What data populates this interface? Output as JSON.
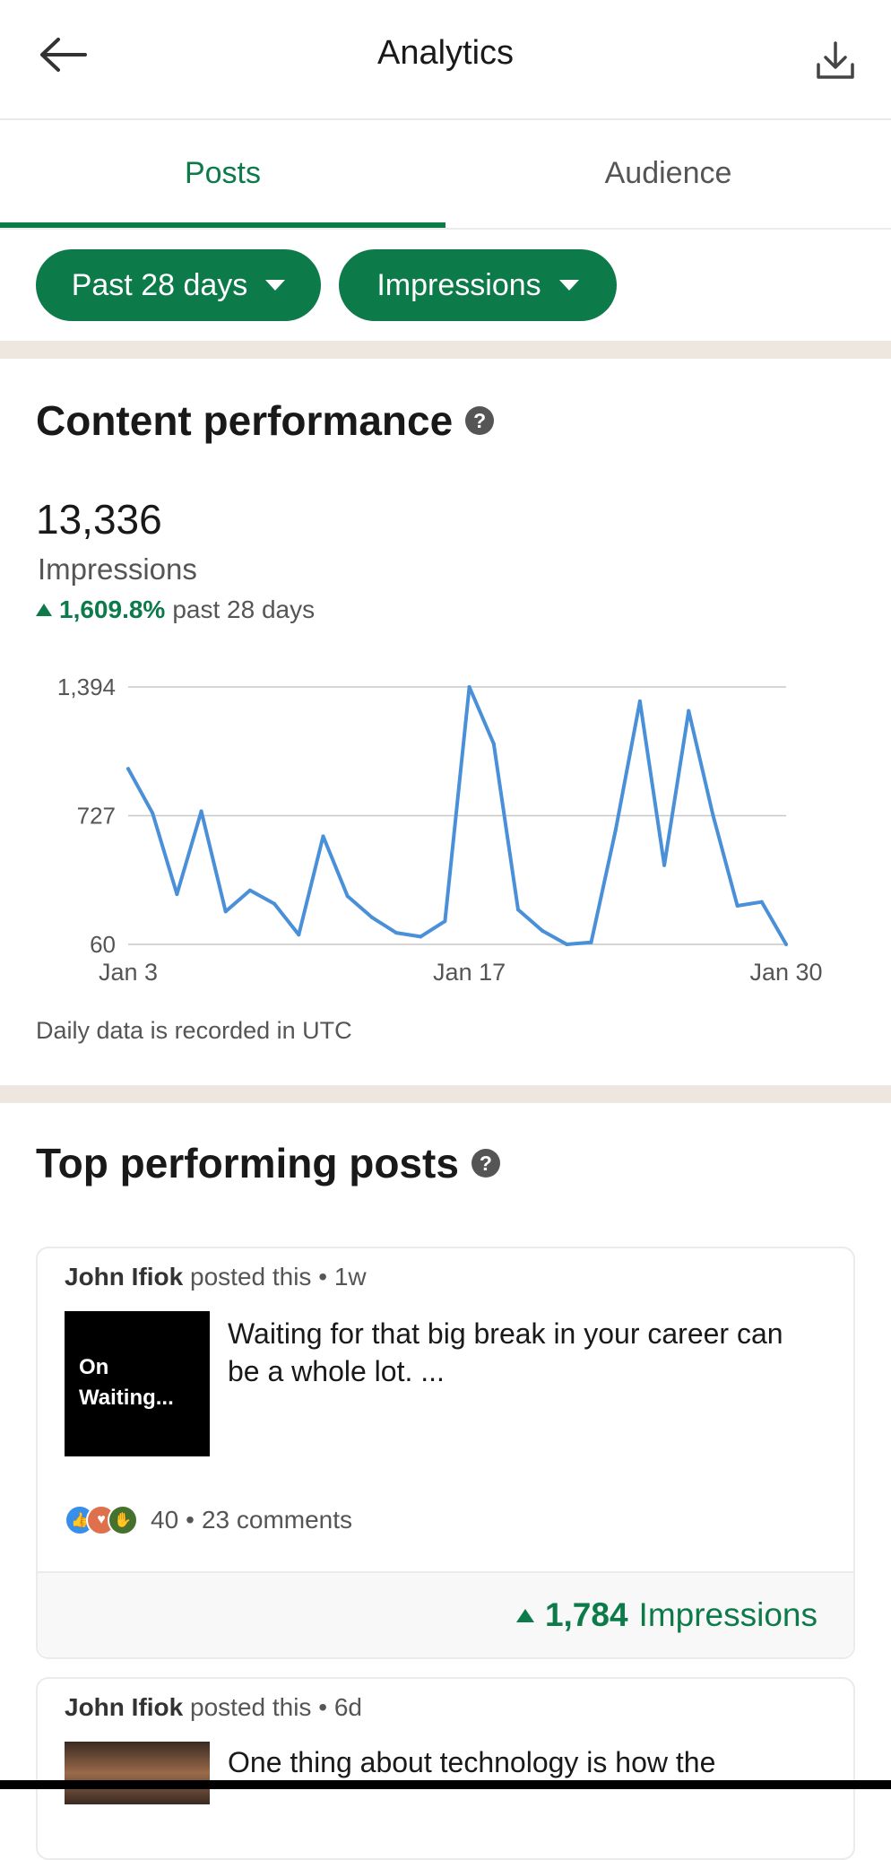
{
  "header": {
    "title": "Analytics",
    "back_icon": "back-arrow-icon",
    "download_icon": "download-icon"
  },
  "tabs": [
    {
      "label": "Posts",
      "active": true
    },
    {
      "label": "Audience",
      "active": false
    }
  ],
  "filters": {
    "range": "Past 28 days",
    "metric": "Impressions"
  },
  "content_performance": {
    "heading": "Content performance",
    "total": "13,336",
    "metric": "Impressions",
    "delta_pct": "1,609.8%",
    "delta_period": "past 28 days",
    "note": "Daily data is recorded in UTC"
  },
  "chart_data": {
    "type": "line",
    "title": "",
    "xlabel": "",
    "ylabel": "",
    "ylim": [
      60,
      1394
    ],
    "y_ticks": [
      "1,394",
      "727",
      "60"
    ],
    "x_tick_labels": [
      "Jan 3",
      "Jan 17",
      "Jan 30"
    ],
    "grid": true,
    "color": "#4a90d9",
    "x": [
      "Jan 3",
      "Jan 4",
      "Jan 5",
      "Jan 6",
      "Jan 7",
      "Jan 8",
      "Jan 9",
      "Jan 10",
      "Jan 11",
      "Jan 12",
      "Jan 13",
      "Jan 14",
      "Jan 15",
      "Jan 16",
      "Jan 17",
      "Jan 18",
      "Jan 19",
      "Jan 20",
      "Jan 21",
      "Jan 22",
      "Jan 23",
      "Jan 24",
      "Jan 25",
      "Jan 26",
      "Jan 27",
      "Jan 28",
      "Jan 29",
      "Jan 30"
    ],
    "values": [
      970,
      740,
      320,
      750,
      230,
      340,
      270,
      110,
      620,
      310,
      200,
      120,
      100,
      180,
      1394,
      1100,
      240,
      130,
      60,
      70,
      650,
      1320,
      470,
      1270,
      730,
      260,
      280,
      60
    ]
  },
  "top_posts": {
    "heading": "Top performing posts",
    "posts": [
      {
        "author": "John Ifiok",
        "action": "posted this",
        "age": "1w",
        "thumb_text": "On Waiting...",
        "text": "Waiting for that big break in your career can be a whole lot. ...",
        "reactions": "40",
        "comments": "23 comments",
        "impressions": "1,784",
        "impressions_label": "Impressions"
      },
      {
        "author": "John Ifiok",
        "action": "posted this",
        "age": "6d",
        "text": "One thing about technology is how the"
      }
    ]
  },
  "colors": {
    "accent": "#0d7a4a",
    "chart_line": "#4a90d9",
    "divider": "#ede7df"
  }
}
